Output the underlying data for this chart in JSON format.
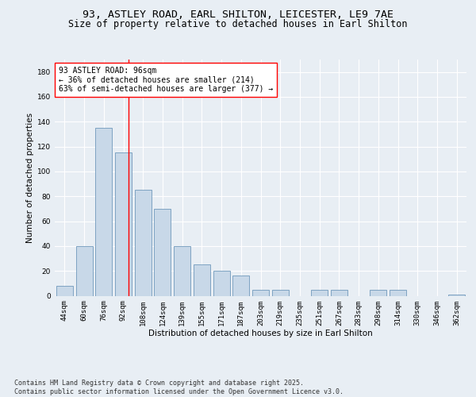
{
  "title_line1": "93, ASTLEY ROAD, EARL SHILTON, LEICESTER, LE9 7AE",
  "title_line2": "Size of property relative to detached houses in Earl Shilton",
  "xlabel": "Distribution of detached houses by size in Earl Shilton",
  "ylabel": "Number of detached properties",
  "categories": [
    "44sqm",
    "60sqm",
    "76sqm",
    "92sqm",
    "108sqm",
    "124sqm",
    "139sqm",
    "155sqm",
    "171sqm",
    "187sqm",
    "203sqm",
    "219sqm",
    "235sqm",
    "251sqm",
    "267sqm",
    "283sqm",
    "298sqm",
    "314sqm",
    "330sqm",
    "346sqm",
    "362sqm"
  ],
  "values": [
    8,
    40,
    135,
    115,
    85,
    70,
    40,
    25,
    20,
    16,
    5,
    5,
    0,
    5,
    5,
    0,
    5,
    5,
    0,
    0,
    1
  ],
  "bar_color": "#c8d8e8",
  "bar_edge_color": "#7099bb",
  "vline_x": 3.25,
  "vline_color": "red",
  "annotation_text": "93 ASTLEY ROAD: 96sqm\n← 36% of detached houses are smaller (214)\n63% of semi-detached houses are larger (377) →",
  "annotation_box_color": "white",
  "annotation_box_edge_color": "red",
  "ylim": [
    0,
    190
  ],
  "yticks": [
    0,
    20,
    40,
    60,
    80,
    100,
    120,
    140,
    160,
    180
  ],
  "background_color": "#e8eef4",
  "footer_text": "Contains HM Land Registry data © Crown copyright and database right 2025.\nContains public sector information licensed under the Open Government Licence v3.0.",
  "title_fontsize": 9.5,
  "subtitle_fontsize": 8.5,
  "axis_label_fontsize": 7.5,
  "tick_fontsize": 6.5,
  "annotation_fontsize": 7,
  "footer_fontsize": 6
}
